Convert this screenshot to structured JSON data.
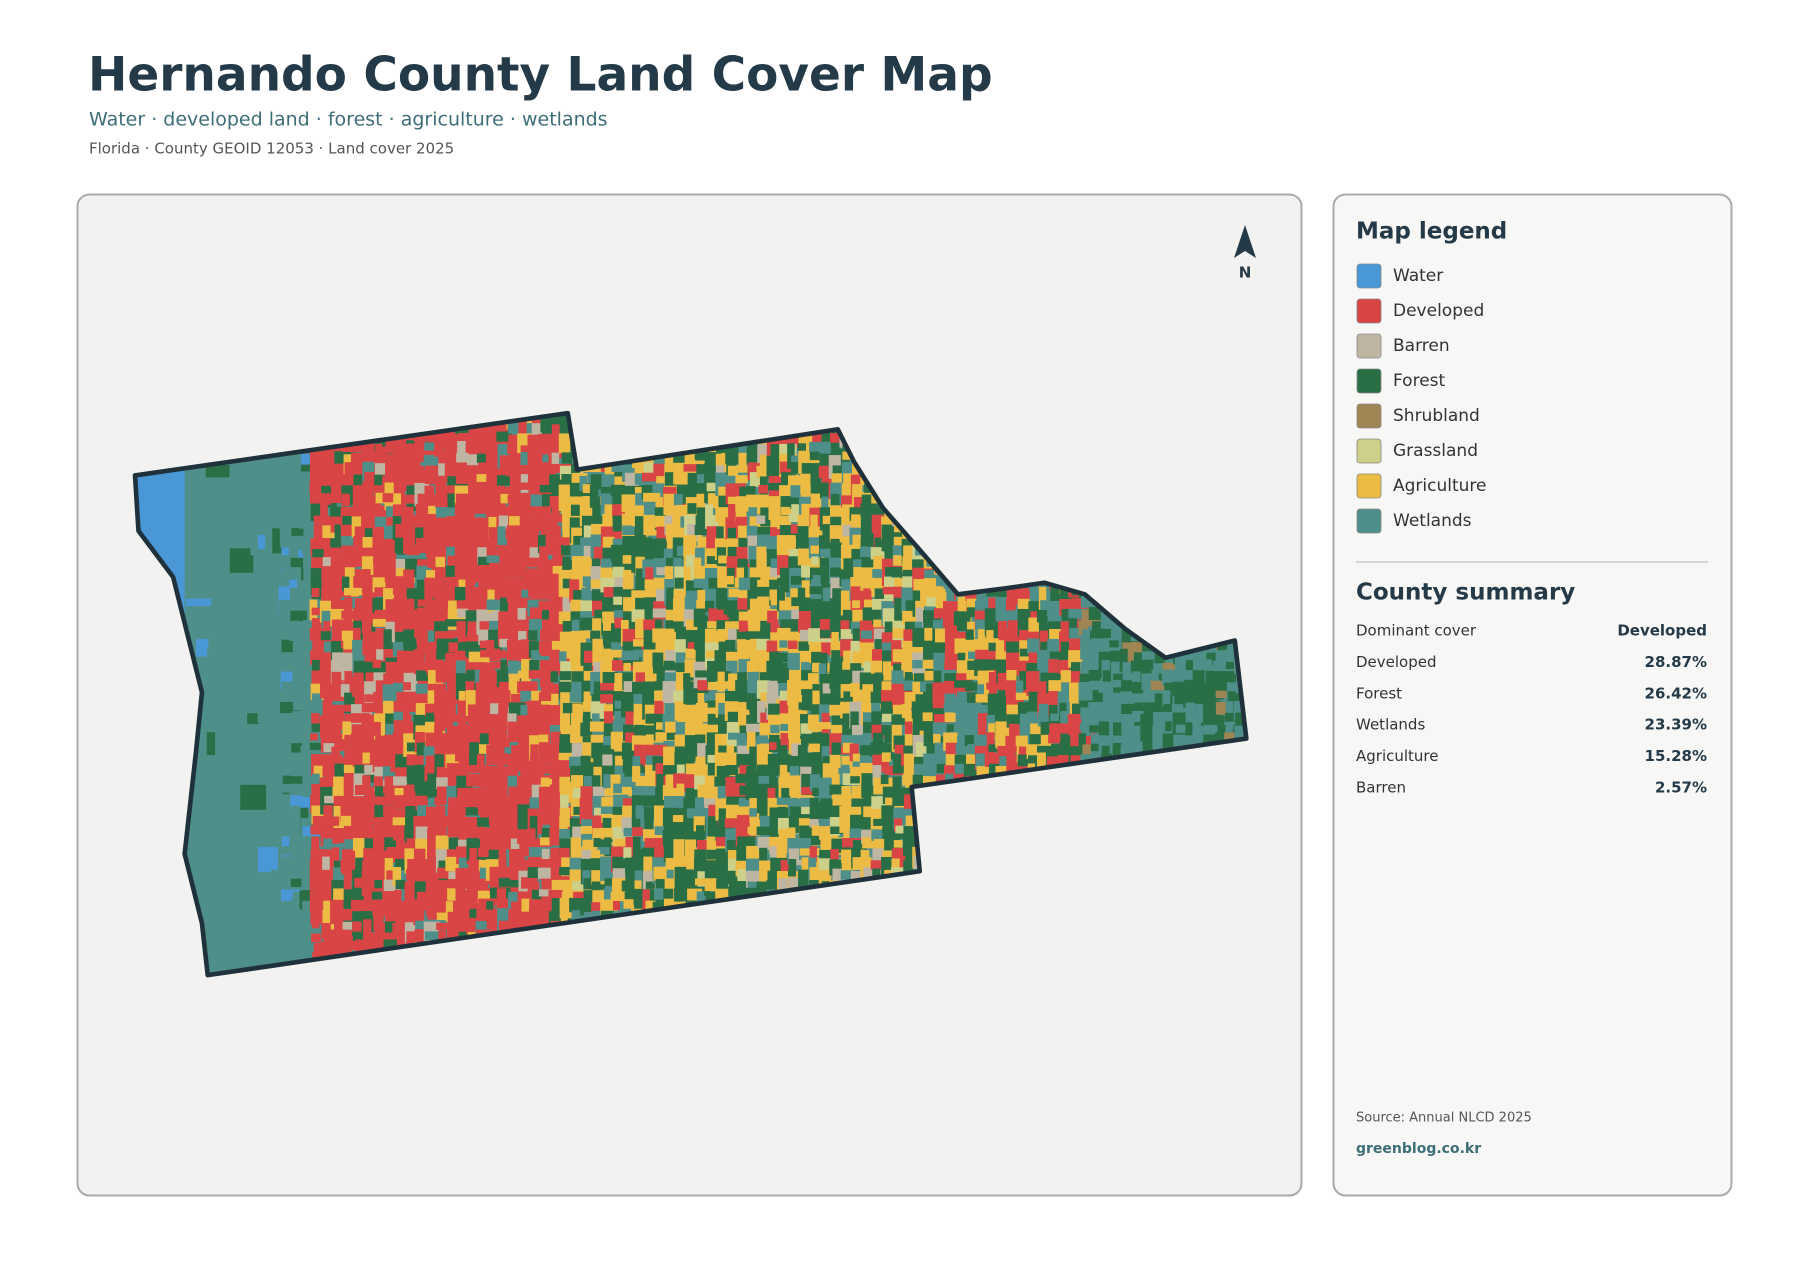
{
  "header": {
    "title": "Hernando County Land Cover Map",
    "subtitle": "Water · developed land · forest · agriculture · wetlands",
    "meta": "Florida · County GEOID 12053 · Land cover 2025"
  },
  "map": {
    "north_label": "N"
  },
  "legend": {
    "title": "Map legend",
    "items": [
      {
        "label": "Water",
        "color": "#4a97d6"
      },
      {
        "label": "Developed",
        "color": "#d94545"
      },
      {
        "label": "Barren",
        "color": "#bfb5a3"
      },
      {
        "label": "Forest",
        "color": "#2a6e45"
      },
      {
        "label": "Shrubland",
        "color": "#9e8553"
      },
      {
        "label": "Grassland",
        "color": "#cdd089"
      },
      {
        "label": "Agriculture",
        "color": "#ecbb44"
      },
      {
        "label": "Wetlands",
        "color": "#4f8f8a"
      }
    ]
  },
  "summary": {
    "title": "County summary",
    "rows": [
      {
        "label": "Dominant cover",
        "value": "Developed"
      },
      {
        "label": "Developed",
        "value": "28.87%"
      },
      {
        "label": "Forest",
        "value": "26.42%"
      },
      {
        "label": "Wetlands",
        "value": "23.39%"
      },
      {
        "label": "Agriculture",
        "value": "15.28%"
      },
      {
        "label": "Barren",
        "value": "2.57%"
      }
    ]
  },
  "footer": {
    "source": "Source: Annual NLCD 2025",
    "site": "greenblog.co.kr"
  }
}
